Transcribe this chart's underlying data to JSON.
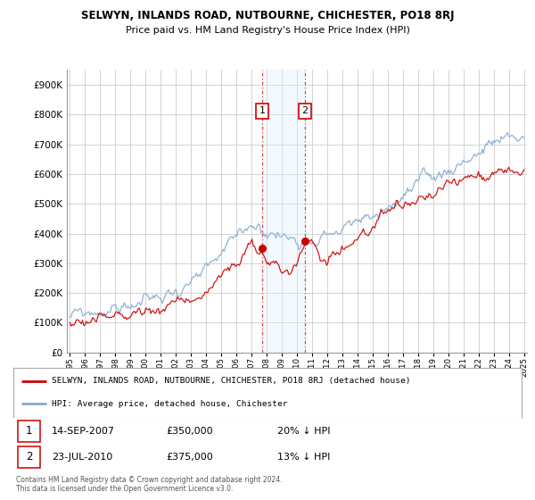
{
  "title": "SELWYN, INLANDS ROAD, NUTBOURNE, CHICHESTER, PO18 8RJ",
  "subtitle": "Price paid vs. HM Land Registry's House Price Index (HPI)",
  "red_label": "SELWYN, INLANDS ROAD, NUTBOURNE, CHICHESTER, PO18 8RJ (detached house)",
  "blue_label": "HPI: Average price, detached house, Chichester",
  "sale1_date": "14-SEP-2007",
  "sale1_price_str": "£350,000",
  "sale1_hpi_str": "20% ↓ HPI",
  "sale1_year": 2007.71,
  "sale1_price": 350000,
  "sale2_date": "23-JUL-2010",
  "sale2_price_str": "£375,000",
  "sale2_hpi_str": "13% ↓ HPI",
  "sale2_year": 2010.54,
  "sale2_price": 375000,
  "footnote_line1": "Contains HM Land Registry data © Crown copyright and database right 2024.",
  "footnote_line2": "This data is licensed under the Open Government Licence v3.0.",
  "red_color": "#cc0000",
  "blue_color": "#88aacc",
  "shade_color": "#ddeeff",
  "vline_color": "#dd4444",
  "background_color": "#ffffff",
  "grid_color": "#cccccc",
  "ylim_max": 950000,
  "ytick_vals": [
    0,
    100000,
    200000,
    300000,
    400000,
    500000,
    600000,
    700000,
    800000,
    900000
  ],
  "start_year": 1995,
  "end_year": 2025
}
